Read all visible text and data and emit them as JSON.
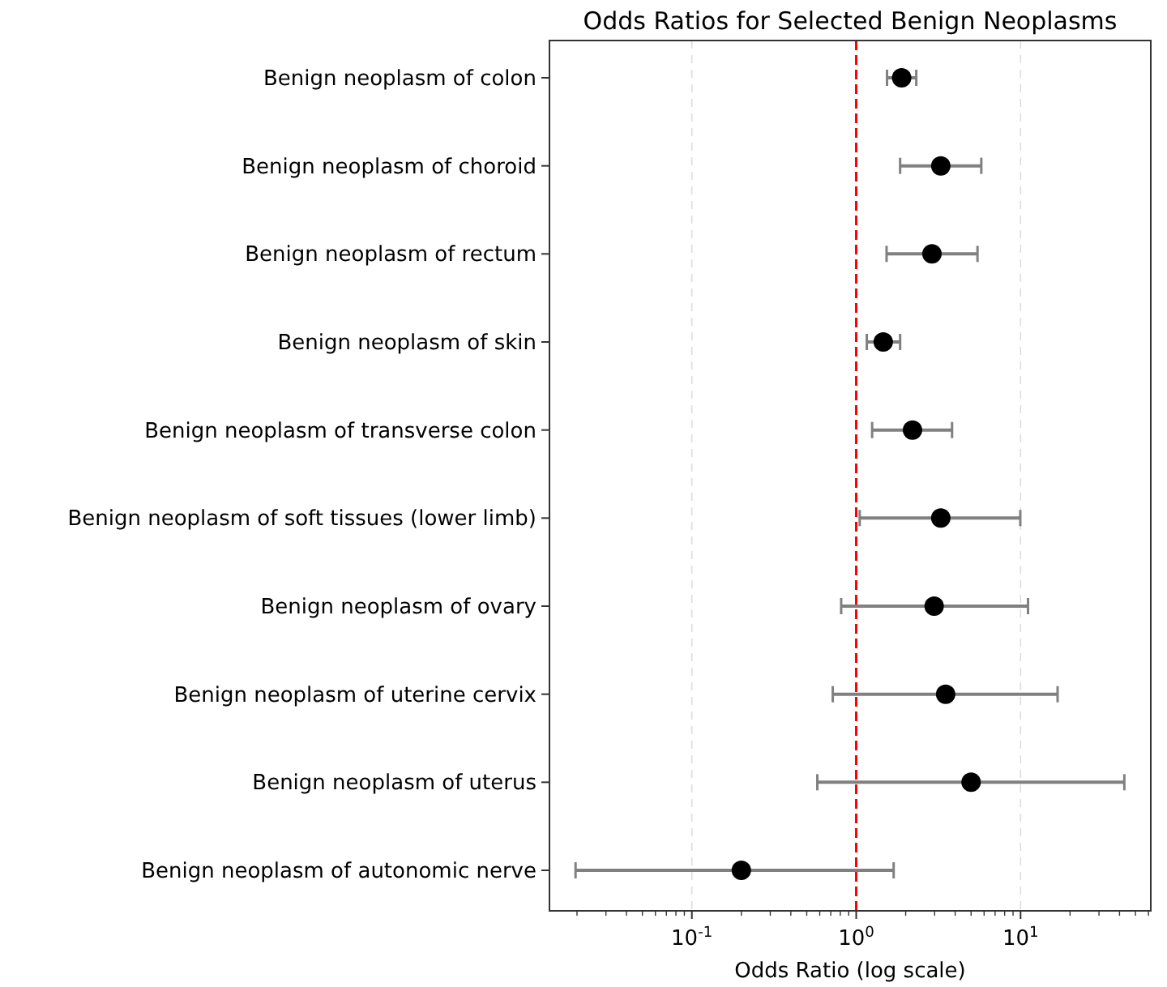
{
  "chart_data": {
    "type": "scatter",
    "orientation": "horizontal",
    "title": "Odds Ratios for Selected Benign Neoplasms",
    "xlabel": "Odds Ratio (log scale)",
    "categories": [
      "Benign neoplasm of colon",
      "Benign neoplasm of choroid",
      "Benign neoplasm of rectum",
      "Benign neoplasm of skin",
      "Benign neoplasm of transverse colon",
      "Benign neoplasm of soft tissues (lower limb)",
      "Benign neoplasm of ovary",
      "Benign neoplasm of uterine cervix",
      "Benign neoplasm of uterus",
      "Benign neoplasm of autonomic nerve"
    ],
    "series": [
      {
        "color": "#000000",
        "values": [
          1.89,
          3.27,
          2.89,
          1.46,
          2.2,
          3.27,
          2.98,
          3.5,
          5.0,
          0.2
        ],
        "errors": [
          [
            1.54,
            2.32
          ],
          [
            1.85,
            5.77
          ],
          [
            1.53,
            5.47
          ],
          [
            1.16,
            1.85
          ],
          [
            1.25,
            3.83
          ],
          [
            1.05,
            9.96
          ],
          [
            0.81,
            11.1
          ],
          [
            0.72,
            16.8
          ],
          [
            0.58,
            42.8
          ],
          [
            0.0196,
            1.69
          ]
        ]
      }
    ],
    "log": "x",
    "xlim": [
      0.0136,
      62
    ],
    "xticks": [
      {
        "value": 0.02,
        "label": null
      },
      {
        "value": 0.03,
        "label": null
      },
      {
        "value": 0.04,
        "label": null
      },
      {
        "value": 0.05,
        "label": null
      },
      {
        "value": 0.06,
        "label": null
      },
      {
        "value": 0.07,
        "label": null
      },
      {
        "value": 0.08,
        "label": null
      },
      {
        "value": 0.09,
        "label": null
      },
      {
        "value": 0.1,
        "label": "10$^{-1}$"
      },
      {
        "value": 0.2,
        "label": null
      },
      {
        "value": 0.3,
        "label": null
      },
      {
        "value": 0.4,
        "label": null
      },
      {
        "value": 0.5,
        "label": null
      },
      {
        "value": 0.6,
        "label": null
      },
      {
        "value": 0.7,
        "label": null
      },
      {
        "value": 0.8,
        "label": null
      },
      {
        "value": 0.9,
        "label": null
      },
      {
        "value": 1,
        "label": "10$^{0}$"
      },
      {
        "value": 2,
        "label": null
      },
      {
        "value": 3,
        "label": null
      },
      {
        "value": 4,
        "label": null
      },
      {
        "value": 5,
        "label": null
      },
      {
        "value": 6,
        "label": null
      },
      {
        "value": 7,
        "label": null
      },
      {
        "value": 8,
        "label": null
      },
      {
        "value": 9,
        "label": null
      },
      {
        "value": 10,
        "label": "10$^{1}$"
      },
      {
        "value": 20,
        "label": null
      },
      {
        "value": 30,
        "label": null
      },
      {
        "value": 40,
        "label": null
      },
      {
        "value": 50,
        "label": null
      },
      {
        "value": 60,
        "label": null
      }
    ],
    "grid": "x",
    "marker": "circle",
    "ref_lines": [
      {
        "axis": "x",
        "value": 1,
        "color": "#ff0000",
        "line_style": "dashed"
      }
    ]
  }
}
